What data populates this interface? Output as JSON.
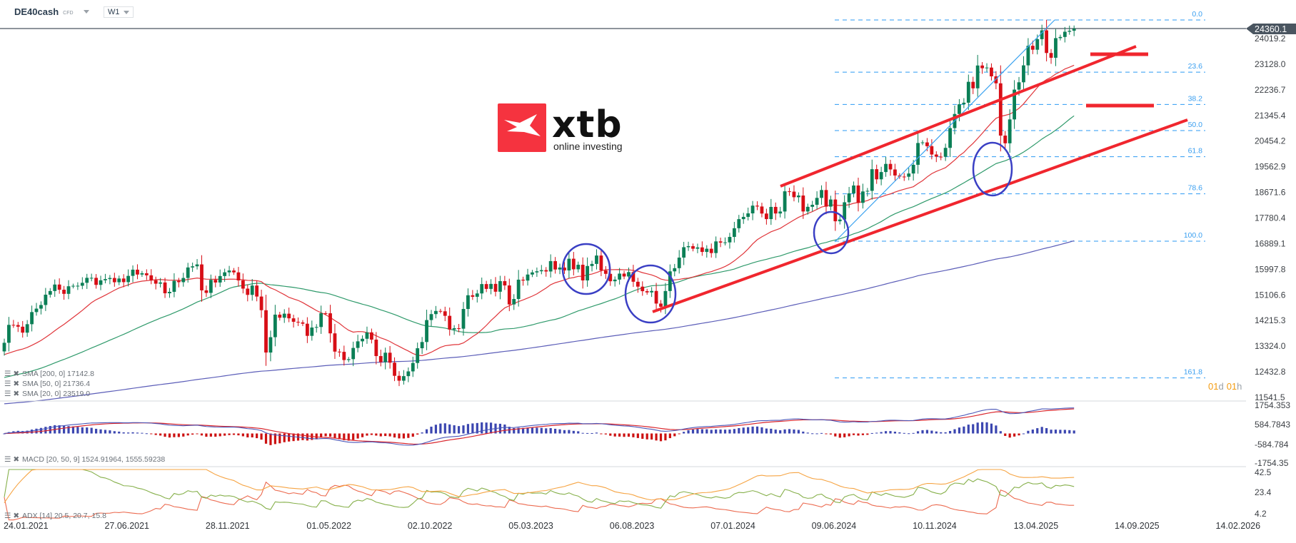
{
  "header": {
    "symbol": "DE40cash",
    "instrument_type": "CFD",
    "timeframe": "W1"
  },
  "logo": {
    "brand": "xtb",
    "tagline": "online investing",
    "color": "#f5333f"
  },
  "price_axis": {
    "ticks": [
      "24019.2",
      "23128.0",
      "22236.7",
      "21345.4",
      "20454.2",
      "19562.9",
      "18671.6",
      "17780.4",
      "16889.1",
      "15997.8",
      "15106.6",
      "14215.3",
      "13324.0",
      "12432.8",
      "11541.5"
    ],
    "current_price": "24360.1"
  },
  "macd_axis": {
    "ticks": [
      "1754.353",
      "584.7843",
      "-584.784",
      "-1754.35"
    ]
  },
  "adx_axis": {
    "ticks": [
      "42.5",
      "23.4",
      "4.2"
    ]
  },
  "date_axis": {
    "ticks": [
      "24.01.2021",
      "27.06.2021",
      "28.11.2021",
      "01.05.2022",
      "02.10.2022",
      "05.03.2023",
      "06.08.2023",
      "07.01.2024",
      "09.06.2024",
      "10.11.2024",
      "13.04.2025",
      "14.09.2025",
      "14.02.2026"
    ]
  },
  "countdown": {
    "days": "01",
    "d": "d",
    "hours": "01",
    "h": "h"
  },
  "indicators": {
    "sma200": "SMA [200, 0] 17142.8",
    "sma50": "SMA [50, 0] 21736.4",
    "sma20": "SMA [20, 0] 23519.0",
    "macd": "MACD [20, 50, 9] 1524.91964,   1555.59238",
    "adx": "ADX [14] 20.5, 20.7, 15.8"
  },
  "fibonacci": {
    "levels": [
      "0.0",
      "23.6",
      "38.2",
      "50.0",
      "61.8",
      "78.6",
      "100.0",
      "161.8"
    ]
  },
  "colors": {
    "up": "#0b7f56",
    "down": "#d70e16",
    "sma20": "#e0353a",
    "sma50": "#2f9a6b",
    "sma200": "#5b5db8",
    "macd": "#4a56b8",
    "signal": "#d9262d",
    "adx": "#f6a443",
    "di_plus": "#86b04b",
    "di_minus": "#ec6b50",
    "fib": "#2b9af3",
    "channel": "#f0262e",
    "circle": "#3a3fc4"
  },
  "chart_data": {
    "type": "candlestick",
    "interval": "weekly",
    "closes": [
      13433,
      14057,
      14050,
      13993,
      13786,
      14080,
      14502,
      14621,
      14748,
      15107,
      15234,
      15460,
      15280,
      15136,
      15400,
      15416,
      15418,
      15520,
      15693,
      15693,
      15448,
      15607,
      15650,
      15688,
      15540,
      15669,
      15544,
      15761,
      15977,
      15808,
      15852,
      15781,
      15609,
      15490,
      15532,
      15156,
      15206,
      15587,
      15542,
      15688,
      16054,
      16094,
      16160,
      15257,
      15169,
      15623,
      15531,
      15756,
      15885,
      15948,
      15883,
      15603,
      15318,
      15100,
      15425,
      15042,
      14567,
      13094,
      13628,
      14413,
      14305,
      14446,
      14284,
      14164,
      14142,
      14097,
      13674,
      13964,
      13982,
      14462,
      14460,
      13761,
      13126,
      13118,
      12833,
      12864,
      13254,
      13484,
      13573,
      13795,
      13544,
      12971,
      12761,
      13088,
      12741,
      12284,
      12114,
      12273,
      12438,
      12731,
      13243,
      13460,
      14224,
      14431,
      14541,
      14529,
      14371,
      13894,
      13940,
      13924,
      14610,
      15087,
      15034,
      15150,
      15476,
      15308,
      15482,
      15210,
      15578,
      15428,
      14768,
      14957,
      15629,
      15598,
      15808,
      15882,
      15922,
      15961,
      15914,
      16275,
      15983,
      16051,
      15950,
      16358,
      15990,
      16148,
      15603,
      16105,
      16177,
      16469,
      15951,
      15832,
      15574,
      15632,
      15840,
      15740,
      15893,
      15557,
      15387,
      15229,
      15186,
      15237,
      14798,
      14687,
      15234,
      15919,
      16029,
      16397,
      16759,
      16795,
      16706,
      16752,
      16594,
      16705,
      16555,
      16961,
      16918,
      16927,
      17117,
      17419,
      17735,
      17814,
      17936,
      18205,
      18175,
      17930,
      17737,
      18161,
      17932,
      18001,
      18704,
      18693,
      18498,
      18557,
      18002,
      18164,
      18235,
      18475,
      18748,
      18171,
      18418,
      17661,
      17722,
      18322,
      18633,
      18906,
      18301,
      18699,
      18720,
      19473,
      19121,
      19374,
      19657,
      19464,
      19254,
      19216,
      19211,
      19323,
      19626,
      20385,
      20405,
      20274,
      19984,
      19909,
      19906,
      20215,
      20903,
      21394,
      21732,
      21787,
      22513,
      22287,
      23081,
      22986,
      23009,
      22704,
      22461,
      20642,
      20374,
      21205,
      22242,
      22497,
      23086,
      23767,
      23630,
      23997,
      24304,
      23516,
      23350,
      24033,
      24073,
      24255,
      24290,
      24360.1
    ]
  }
}
